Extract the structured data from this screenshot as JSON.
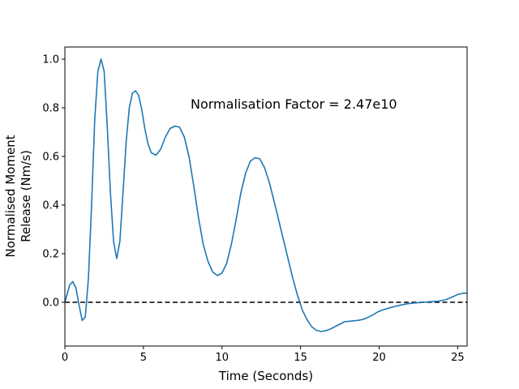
{
  "chart_data": {
    "type": "line",
    "title": "",
    "xlabel": "Time (Seconds)",
    "ylabel_lines": [
      "Normalised Moment",
      "Release (Nm/s)"
    ],
    "annotation": "Normalisation Factor = 2.47e10",
    "xlim": [
      0,
      25.6
    ],
    "ylim": [
      -0.18,
      1.05
    ],
    "xticks": [
      0,
      5,
      10,
      15,
      20,
      25
    ],
    "yticks": [
      0.0,
      0.2,
      0.4,
      0.6,
      0.8,
      1.0
    ],
    "xtick_labels": [
      "0",
      "5",
      "10",
      "15",
      "20",
      "25"
    ],
    "ytick_labels": [
      "0.0",
      "0.2",
      "0.4",
      "0.6",
      "0.8",
      "1.0"
    ],
    "grid": false,
    "reference_line": {
      "y": 0.0,
      "style": "dashed",
      "color": "#000000"
    },
    "series": [
      {
        "color": "#1f77b4",
        "x": [
          0,
          0.3,
          0.5,
          0.7,
          0.9,
          1.1,
          1.3,
          1.5,
          1.7,
          1.9,
          2.1,
          2.3,
          2.5,
          2.7,
          2.9,
          3.1,
          3.3,
          3.5,
          3.7,
          3.9,
          4.1,
          4.3,
          4.5,
          4.7,
          4.9,
          5.1,
          5.3,
          5.5,
          5.8,
          6.1,
          6.4,
          6.7,
          7.0,
          7.3,
          7.6,
          7.9,
          8.2,
          8.5,
          8.8,
          9.1,
          9.4,
          9.7,
          10.0,
          10.3,
          10.6,
          10.9,
          11.2,
          11.5,
          11.8,
          12.1,
          12.4,
          12.7,
          13.0,
          13.3,
          13.6,
          13.9,
          14.2,
          14.5,
          14.8,
          15.1,
          15.4,
          15.7,
          16.0,
          16.3,
          16.6,
          16.9,
          17.2,
          17.5,
          17.8,
          18.1,
          18.4,
          18.7,
          19.0,
          19.3,
          19.6,
          19.9,
          20.2,
          20.6,
          21.0,
          21.4,
          21.8,
          22.2,
          22.6,
          23.0,
          23.4,
          23.8,
          24.2,
          24.6,
          25.0,
          25.3,
          25.6
        ],
        "y": [
          0.0,
          0.07,
          0.085,
          0.06,
          -0.01,
          -0.075,
          -0.06,
          0.1,
          0.4,
          0.75,
          0.95,
          1.0,
          0.95,
          0.72,
          0.45,
          0.25,
          0.18,
          0.25,
          0.45,
          0.66,
          0.8,
          0.86,
          0.87,
          0.85,
          0.79,
          0.71,
          0.65,
          0.615,
          0.605,
          0.63,
          0.68,
          0.715,
          0.725,
          0.72,
          0.68,
          0.6,
          0.48,
          0.35,
          0.24,
          0.17,
          0.125,
          0.11,
          0.12,
          0.16,
          0.24,
          0.34,
          0.45,
          0.53,
          0.58,
          0.595,
          0.59,
          0.555,
          0.495,
          0.42,
          0.34,
          0.26,
          0.18,
          0.1,
          0.03,
          -0.03,
          -0.07,
          -0.1,
          -0.115,
          -0.12,
          -0.117,
          -0.11,
          -0.1,
          -0.09,
          -0.08,
          -0.078,
          -0.076,
          -0.074,
          -0.07,
          -0.062,
          -0.052,
          -0.04,
          -0.032,
          -0.024,
          -0.017,
          -0.011,
          -0.006,
          -0.003,
          -0.001,
          0.001,
          0.003,
          0.005,
          0.01,
          0.02,
          0.032,
          0.037,
          0.038
        ]
      }
    ]
  }
}
